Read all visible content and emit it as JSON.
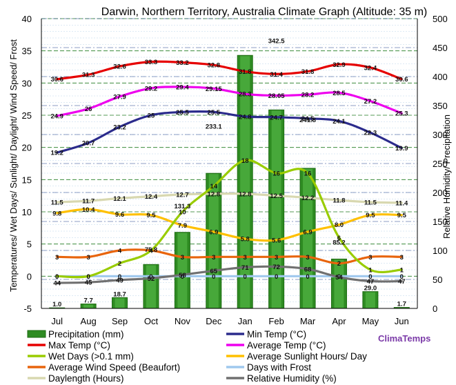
{
  "chart_data": {
    "type": "line",
    "title": "Darwin, Northern Territory, Australia Climate Graph (Altitude: 35 m)",
    "ylabel": "Temperatures/ Wet Days/ Sunlight/ Daylight/ Wind Speed/ Frost",
    "y2label": "Relative Humidity/ Precipitation",
    "ylim": [
      -5,
      40
    ],
    "y2lim": [
      0,
      500
    ],
    "yticks": [
      "-5",
      "0",
      "5",
      "10",
      "15",
      "20",
      "25",
      "30",
      "35",
      "40"
    ],
    "y2ticks": [
      "0",
      "50",
      "100",
      "150",
      "200",
      "250",
      "300",
      "350",
      "400",
      "450",
      "500"
    ],
    "categories": [
      "Jul",
      "Aug",
      "Sep",
      "Oct",
      "Nov",
      "Dec",
      "Jan",
      "Feb",
      "Mar",
      "Apr",
      "May",
      "Jun"
    ],
    "grid": true,
    "legend": "bottom",
    "precipitation": {
      "name": "Precipitation (mm)",
      "color": "#2e8b22",
      "values": [
        1.0,
        7.7,
        18.7,
        75.8,
        131.3,
        233.1,
        436.6,
        342.5,
        241.8,
        85.2,
        29.0,
        1.7
      ],
      "labels": [
        "1.0",
        "7.7",
        "18.7",
        "75.8",
        "131.3",
        "233.1",
        "436.6",
        "342.5",
        "241.8",
        "85.2",
        "29.0",
        "1.7"
      ]
    },
    "series": [
      {
        "name": "Max Temp (°C)",
        "color": "#e60000",
        "axis": "left",
        "values": [
          30.6,
          31.3,
          32.6,
          33.3,
          33.2,
          32.8,
          31.8,
          31.4,
          31.8,
          32.9,
          32.4,
          30.6
        ],
        "labels": [
          "30.6",
          "31.3",
          "32.6",
          "33.3",
          "33.2",
          "32.8",
          "31.8",
          "31.4",
          "31.8",
          "32.9",
          "32.4",
          "30.6"
        ]
      },
      {
        "name": "Min Temp (°C)",
        "color": "#2b2b8c",
        "axis": "left",
        "values": [
          19.2,
          20.7,
          23.2,
          25,
          25.5,
          25.5,
          24.8,
          24.7,
          24.5,
          24.1,
          22.3,
          19.9
        ],
        "labels": [
          "19.2",
          "20.7",
          "23.2",
          "25",
          "25.5",
          "25.5",
          "24.8",
          "24.7",
          "24.5",
          "24.1",
          "22.3",
          "19.9"
        ]
      },
      {
        "name": "Average Temp (°C)",
        "color": "#ee00ee",
        "axis": "left",
        "values": [
          24.9,
          26,
          27.9,
          29.2,
          29.4,
          29.15,
          28.3,
          28.05,
          28.2,
          28.5,
          27.2,
          25.3
        ],
        "labels": [
          "24.9",
          "26",
          "27.9",
          "29.2",
          "29.4",
          "29.15",
          "28.3",
          "28.05",
          "28.2",
          "28.5",
          "27.2",
          "25.3"
        ]
      },
      {
        "name": "Wet Days (>0.1 mm)",
        "color": "#99cc00",
        "axis": "left",
        "values": [
          0,
          0,
          2,
          4,
          10,
          14,
          18,
          16,
          16,
          6,
          1,
          1
        ],
        "labels": [
          "0",
          "0",
          "2",
          "4",
          "10",
          "14",
          "18",
          "16",
          "16",
          "6",
          "1",
          "1"
        ]
      },
      {
        "name": "Average Sunlight Hours/ Day",
        "color": "#ffc000",
        "axis": "left",
        "values": [
          9.8,
          10.4,
          9.6,
          9.5,
          7.9,
          6.9,
          5.8,
          5.6,
          6.9,
          8.0,
          9.5,
          9.5
        ],
        "labels": [
          "9.8",
          "10.4",
          "9.6",
          "9.5",
          "7.9",
          "6.9",
          "5.8",
          "5.6",
          "6.9",
          "8.0",
          "9.5",
          "9.5"
        ]
      },
      {
        "name": "Average Wind Speed (Beaufort)",
        "color": "#e8640c",
        "axis": "left",
        "values": [
          3,
          3,
          4,
          4,
          3,
          3,
          3,
          3,
          3,
          2,
          3,
          3
        ],
        "labels": [
          "3",
          "3",
          "4",
          "4",
          "3",
          "3",
          "3",
          "3",
          "3",
          "2",
          "3",
          "3"
        ]
      },
      {
        "name": "Days with Frost",
        "color": "#9fc8ee",
        "axis": "left",
        "values": [
          0,
          0,
          0,
          0,
          0,
          0,
          0,
          0,
          0,
          0,
          0,
          0
        ],
        "labels": [
          "0",
          "0",
          "0",
          "0",
          "0",
          "0",
          "0",
          "0",
          "0",
          "0",
          "0",
          "0"
        ]
      },
      {
        "name": "Daylength (Hours)",
        "color": "#d8d8b0",
        "axis": "left",
        "values": [
          11.5,
          11.7,
          12.1,
          12.4,
          12.7,
          12.8,
          12.8,
          12.5,
          12.2,
          11.8,
          11.5,
          11.4
        ],
        "labels": [
          "11.5",
          "11.7",
          "12.1",
          "12.4",
          "12.7",
          "12.8",
          "12.8",
          "12.5",
          "12.2",
          "11.8",
          "11.5",
          "11.4"
        ]
      },
      {
        "name": "Relative Humidity (%)",
        "color": "#707070",
        "axis": "right",
        "values": [
          44,
          45,
          49,
          52,
          58,
          65,
          71,
          72,
          68,
          54,
          47,
          47
        ],
        "labels": [
          "44",
          "45",
          "49",
          "52",
          "58",
          "65",
          "71",
          "72",
          "68",
          "54",
          "47",
          "47"
        ]
      }
    ],
    "legend_items": [
      "Precipitation (mm)",
      "Min Temp (°C)",
      "Max Temp (°C)",
      "Average Temp (°C)",
      "Wet Days (>0.1 mm)",
      "Average Sunlight Hours/ Day",
      "Average Wind Speed (Beaufort)",
      "Days with Frost",
      "Daylength (Hours)",
      "Relative Humidity (%)"
    ],
    "legend_colors": {
      "Precipitation (mm)": "#2e8b22",
      "Min Temp (°C)": "#2b2b8c",
      "Max Temp (°C)": "#e60000",
      "Average Temp (°C)": "#ee00ee",
      "Wet Days (>0.1 mm)": "#99cc00",
      "Average Sunlight Hours/ Day": "#ffc000",
      "Average Wind Speed (Beaufort)": "#e8640c",
      "Days with Frost": "#9fc8ee",
      "Daylength (Hours)": "#d8d8b0",
      "Relative Humidity (%)": "#707070"
    },
    "brand": "ClimaTemps"
  }
}
